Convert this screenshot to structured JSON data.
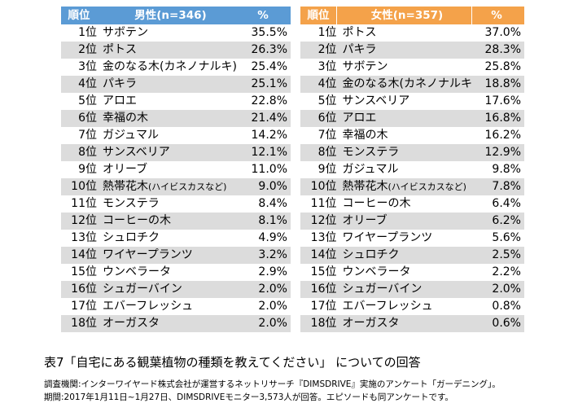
{
  "male_table": {
    "headers": {
      "rank": "順位",
      "name": "男性(n=346)",
      "pct": "%"
    },
    "rows": [
      {
        "rank": "1位",
        "name": "サボテン",
        "pct": "35.5%"
      },
      {
        "rank": "2位",
        "name": "ポトス",
        "pct": "26.3%"
      },
      {
        "rank": "3位",
        "name": "金のなる木(カネノナルキ)",
        "pct": "25.4%"
      },
      {
        "rank": "4位",
        "name": "パキラ",
        "pct": "25.1%"
      },
      {
        "rank": "5位",
        "name": "アロエ",
        "pct": "22.8%"
      },
      {
        "rank": "6位",
        "name": "幸福の木",
        "pct": "21.4%"
      },
      {
        "rank": "7位",
        "name": "ガジュマル",
        "pct": "14.2%"
      },
      {
        "rank": "8位",
        "name": "サンスベリア",
        "pct": "12.1%"
      },
      {
        "rank": "9位",
        "name": "オリーブ",
        "pct": "11.0%"
      },
      {
        "rank": "10位",
        "name": "熱帯花木",
        "name_small": "(ハイビスカスなど)",
        "pct": "9.0%"
      },
      {
        "rank": "11位",
        "name": "モンステラ",
        "pct": "8.4%"
      },
      {
        "rank": "12位",
        "name": "コーヒーの木",
        "pct": "8.1%"
      },
      {
        "rank": "13位",
        "name": "シュロチク",
        "pct": "4.9%"
      },
      {
        "rank": "14位",
        "name": "ワイヤープランツ",
        "pct": "3.2%"
      },
      {
        "rank": "15位",
        "name": "ウンベラータ",
        "pct": "2.9%"
      },
      {
        "rank": "16位",
        "name": "シュガーバイン",
        "pct": "2.0%"
      },
      {
        "rank": "17位",
        "name": "エバーフレッシュ",
        "pct": "2.0%"
      },
      {
        "rank": "18位",
        "name": "オーガスタ",
        "pct": "2.0%"
      }
    ]
  },
  "female_table": {
    "headers": {
      "rank": "順位",
      "name": "女性(n=357)",
      "pct": "%"
    },
    "rows": [
      {
        "rank": "1位",
        "name": "ポトス",
        "pct": "37.0%"
      },
      {
        "rank": "2位",
        "name": "パキラ",
        "pct": "28.3%"
      },
      {
        "rank": "3位",
        "name": "サボテン",
        "pct": "25.8%"
      },
      {
        "rank": "4位",
        "name": "金のなる木(カネノナルキ)",
        "pct": "18.8%"
      },
      {
        "rank": "5位",
        "name": "サンスベリア",
        "pct": "17.6%"
      },
      {
        "rank": "6位",
        "name": "アロエ",
        "pct": "16.8%"
      },
      {
        "rank": "7位",
        "name": "幸福の木",
        "pct": "16.2%"
      },
      {
        "rank": "8位",
        "name": "モンステラ",
        "pct": "12.9%"
      },
      {
        "rank": "9位",
        "name": "ガジュマル",
        "pct": "9.8%"
      },
      {
        "rank": "10位",
        "name": "熱帯花木",
        "name_small": "(ハイビスカスなど)",
        "pct": "7.8%"
      },
      {
        "rank": "11位",
        "name": "コーヒーの木",
        "pct": "6.4%"
      },
      {
        "rank": "12位",
        "name": "オリーブ",
        "pct": "6.2%"
      },
      {
        "rank": "13位",
        "name": "ワイヤープランツ",
        "pct": "5.6%"
      },
      {
        "rank": "14位",
        "name": "シュロチク",
        "pct": "2.5%"
      },
      {
        "rank": "15位",
        "name": "ウンベラータ",
        "pct": "2.2%"
      },
      {
        "rank": "16位",
        "name": "シュガーバイン",
        "pct": "2.0%"
      },
      {
        "rank": "17位",
        "name": "エバーフレッシュ",
        "pct": "0.8%"
      },
      {
        "rank": "18位",
        "name": "オーガスタ",
        "pct": "0.6%"
      }
    ]
  },
  "caption": "表7「自宅にある観葉植物の種類を教えてください」 についての回答",
  "note": {
    "line1": "調査機関:インターワイヤード株式会社が運営するネットリサーチ『DIMSDRIVE』実施のアンケート「ガーデニング」。",
    "line2": "期間:2017年1月11日~1月27日、DIMSDRIVEモニター3,573人が回答。エピソードも同アンケートです。"
  },
  "colors": {
    "male_header": "#5b9bd5",
    "female_header": "#f4a24a",
    "stripe": "#dcdcdc"
  }
}
